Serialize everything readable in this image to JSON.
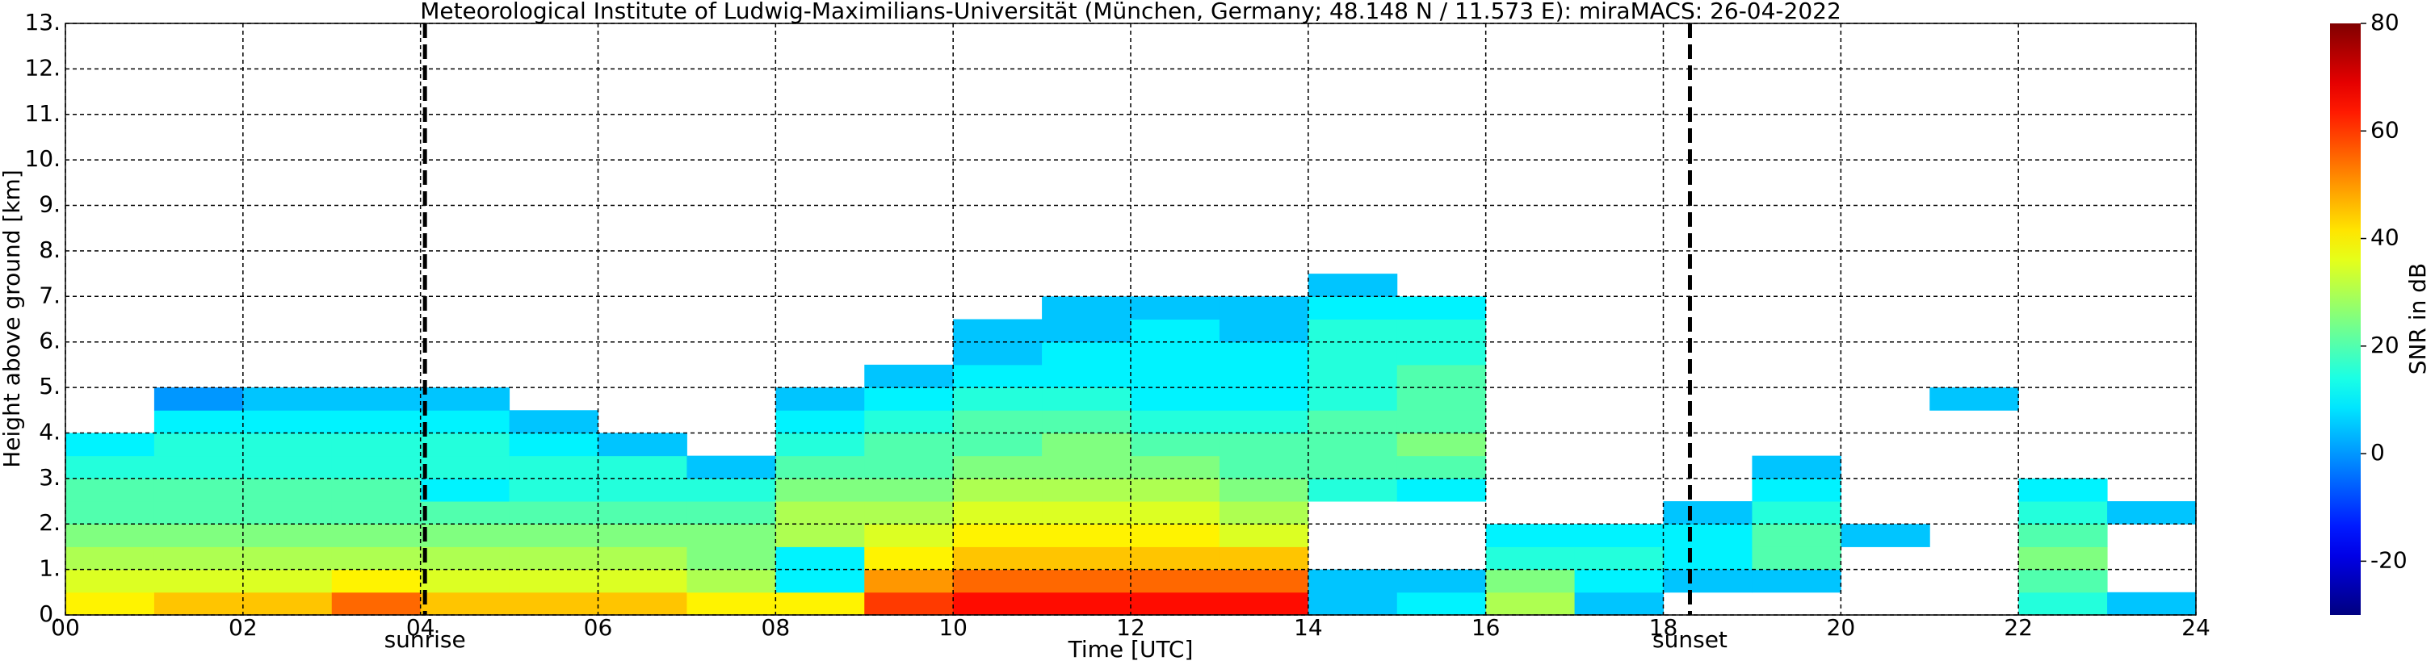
{
  "chart_data": {
    "type": "heatmap",
    "title": "Meteorological Institute of Ludwig-Maximilians-Universität (München, Germany; 48.148 N / 11.573 E):    miraMACS: 26-04-2022",
    "xlabel": "Time [UTC]",
    "ylabel": "Height above ground [km]",
    "colorbar_label": "SNR in dB",
    "colormap": "jet",
    "grid": true,
    "xlim": [
      0,
      24
    ],
    "xticks": [
      {
        "value": 0,
        "label": "00"
      },
      {
        "value": 2,
        "label": "02"
      },
      {
        "value": 4,
        "label": "04"
      },
      {
        "value": 6,
        "label": "06"
      },
      {
        "value": 8,
        "label": "08"
      },
      10,
      12,
      14,
      16,
      18,
      20,
      22,
      24
    ],
    "ylim": [
      0,
      13
    ],
    "yticks": [
      {
        "value": 0,
        "label": "0."
      },
      {
        "value": 1,
        "label": "1."
      },
      {
        "value": 2,
        "label": "2."
      },
      {
        "value": 3,
        "label": "3."
      },
      {
        "value": 4,
        "label": "4."
      },
      {
        "value": 5,
        "label": "5."
      },
      {
        "value": 6,
        "label": "6."
      },
      {
        "value": 7,
        "label": "7."
      },
      {
        "value": 8,
        "label": "8."
      },
      {
        "value": 9,
        "label": "9."
      },
      {
        "value": 10,
        "label": "10."
      },
      {
        "value": 11,
        "label": "11."
      },
      {
        "value": 12,
        "label": "12."
      },
      {
        "value": 13,
        "label": "13."
      }
    ],
    "zlim": [
      -30,
      80
    ],
    "zticks": [
      -20,
      0,
      20,
      40,
      60,
      80
    ],
    "annotations": [
      {
        "text": "sunrise",
        "x": 4.05
      },
      {
        "text": "sunset",
        "x": 18.3
      }
    ],
    "xbins": [
      0,
      1,
      2,
      3,
      4,
      5,
      6,
      7,
      8,
      9,
      10,
      11,
      12,
      13,
      14,
      15,
      16,
      17,
      18,
      19,
      20,
      21,
      22,
      23,
      24
    ],
    "ybins": [
      0,
      0.5,
      1,
      1.5,
      2,
      2.5,
      3,
      3.5,
      4,
      4.5,
      5,
      5.5,
      6,
      6.5,
      7,
      7.5
    ],
    "z": [
      [
        40,
        35,
        30,
        25,
        20,
        20,
        15,
        10,
        null,
        null,
        null,
        null,
        null,
        null,
        null
      ],
      [
        45,
        35,
        30,
        25,
        20,
        20,
        15,
        15,
        10,
        0,
        null,
        null,
        null,
        null,
        null
      ],
      [
        45,
        35,
        30,
        25,
        20,
        20,
        15,
        15,
        10,
        5,
        null,
        null,
        null,
        null,
        null
      ],
      [
        55,
        40,
        30,
        25,
        20,
        20,
        15,
        15,
        10,
        5,
        null,
        null,
        null,
        null,
        null
      ],
      [
        45,
        35,
        30,
        25,
        20,
        10,
        15,
        15,
        10,
        5,
        null,
        null,
        null,
        null,
        null
      ],
      [
        45,
        35,
        30,
        25,
        20,
        15,
        15,
        10,
        5,
        null,
        null,
        null,
        null,
        null,
        null
      ],
      [
        45,
        35,
        30,
        25,
        20,
        15,
        15,
        5,
        null,
        null,
        null,
        null,
        null,
        null,
        null
      ],
      [
        40,
        30,
        25,
        25,
        20,
        15,
        5,
        null,
        null,
        null,
        null,
        null,
        null,
        null,
        null
      ],
      [
        40,
        10,
        10,
        30,
        30,
        25,
        20,
        15,
        10,
        5,
        null,
        null,
        null,
        null,
        null
      ],
      [
        60,
        50,
        40,
        35,
        30,
        25,
        20,
        20,
        15,
        10,
        5,
        null,
        null,
        null,
        null
      ],
      [
        65,
        55,
        45,
        40,
        35,
        30,
        25,
        20,
        20,
        15,
        10,
        5,
        5,
        null,
        null
      ],
      [
        65,
        55,
        45,
        40,
        35,
        30,
        25,
        25,
        20,
        15,
        10,
        10,
        5,
        5,
        null
      ],
      [
        65,
        55,
        45,
        40,
        35,
        30,
        25,
        20,
        15,
        10,
        10,
        10,
        10,
        5,
        null
      ],
      [
        65,
        55,
        45,
        35,
        30,
        25,
        20,
        20,
        15,
        10,
        10,
        10,
        5,
        5,
        null
      ],
      [
        5,
        5,
        null,
        null,
        null,
        15,
        20,
        20,
        20,
        15,
        15,
        15,
        15,
        10,
        5
      ],
      [
        10,
        5,
        null,
        null,
        null,
        10,
        20,
        25,
        20,
        20,
        20,
        15,
        15,
        10,
        null
      ],
      [
        30,
        25,
        15,
        10,
        null,
        null,
        null,
        null,
        null,
        null,
        null,
        null,
        null,
        null,
        null
      ],
      [
        5,
        10,
        15,
        10,
        null,
        null,
        null,
        null,
        null,
        null,
        null,
        null,
        null,
        null,
        null
      ],
      [
        null,
        5,
        10,
        10,
        5,
        null,
        null,
        null,
        null,
        null,
        null,
        null,
        null,
        null,
        null
      ],
      [
        null,
        5,
        20,
        20,
        15,
        10,
        5,
        null,
        null,
        null,
        null,
        null,
        null,
        null,
        null
      ],
      [
        null,
        null,
        null,
        5,
        null,
        null,
        null,
        null,
        null,
        null,
        null,
        null,
        null,
        null,
        null
      ],
      [
        null,
        null,
        null,
        null,
        null,
        null,
        null,
        null,
        null,
        5,
        null,
        null,
        null,
        null,
        null
      ],
      [
        15,
        20,
        25,
        20,
        15,
        10,
        null,
        null,
        null,
        null,
        null,
        null,
        null,
        null,
        null
      ],
      [
        5,
        null,
        null,
        null,
        5,
        null,
        null,
        null,
        null,
        null,
        null,
        null,
        null,
        null,
        null
      ]
    ]
  }
}
